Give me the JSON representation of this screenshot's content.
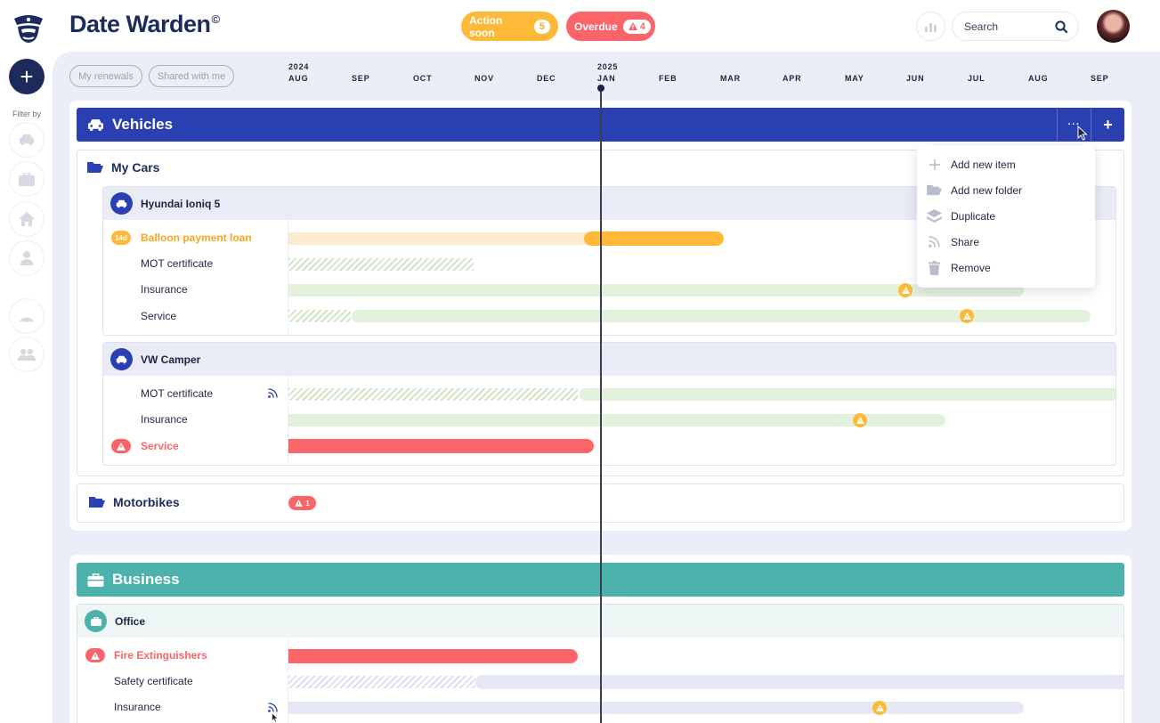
{
  "app": {
    "title": "Date Warden",
    "trademark": "©"
  },
  "header": {
    "action_soon": {
      "label": "Action soon",
      "count": "5",
      "color": "#ffb938"
    },
    "overdue": {
      "label": "Overdue",
      "count": "4",
      "color": "#fb6469"
    },
    "search_placeholder": "Search",
    "icons": [
      "logo-warden-icon",
      "chart-icon",
      "search-icon",
      "avatar"
    ]
  },
  "sidebar": {
    "filter_label": "Filter by",
    "filters": [
      "car-icon",
      "briefcase-icon",
      "home-icon",
      "person-icon",
      "broadcast-icon",
      "people-icon"
    ]
  },
  "tabs": [
    "My renewals",
    "Shared with me"
  ],
  "timeline": {
    "years": [
      "2024",
      "2025"
    ],
    "months": [
      "AUG",
      "SEP",
      "OCT",
      "NOV",
      "DEC",
      "JAN",
      "FEB",
      "MAR",
      "APR",
      "MAY",
      "JUN",
      "JUL",
      "AUG",
      "SEP"
    ],
    "today_month": "JAN"
  },
  "groups": {
    "vehicles": {
      "title": "Vehicles",
      "more_label": "···",
      "add_label": "+",
      "folder": "My Cars",
      "items": [
        {
          "name": "Hyundai Ioniq 5",
          "rows": [
            {
              "label": "Balloon payment loan",
              "badge": "14d"
            },
            {
              "label": "MOT certificate"
            },
            {
              "label": "Insurance"
            },
            {
              "label": "Service"
            }
          ]
        },
        {
          "name": "VW Camper",
          "rows": [
            {
              "label": "MOT certificate"
            },
            {
              "label": "Insurance"
            },
            {
              "label": "Service"
            }
          ]
        }
      ],
      "second_folder": {
        "title": "Motorbikes",
        "alert_count": "1"
      }
    },
    "business": {
      "title": "Business",
      "item": "Office",
      "rows": [
        {
          "label": "Fire Extinguishers"
        },
        {
          "label": "Safety certificate"
        },
        {
          "label": "Insurance"
        }
      ]
    }
  },
  "menu": [
    {
      "label": "Add new item",
      "icon": "plus-icon"
    },
    {
      "label": "Add new folder",
      "icon": "folder-icon"
    },
    {
      "label": "Duplicate",
      "icon": "layers-icon"
    },
    {
      "label": "Share",
      "icon": "share-feed-icon"
    },
    {
      "label": "Remove",
      "icon": "trash-icon"
    }
  ]
}
